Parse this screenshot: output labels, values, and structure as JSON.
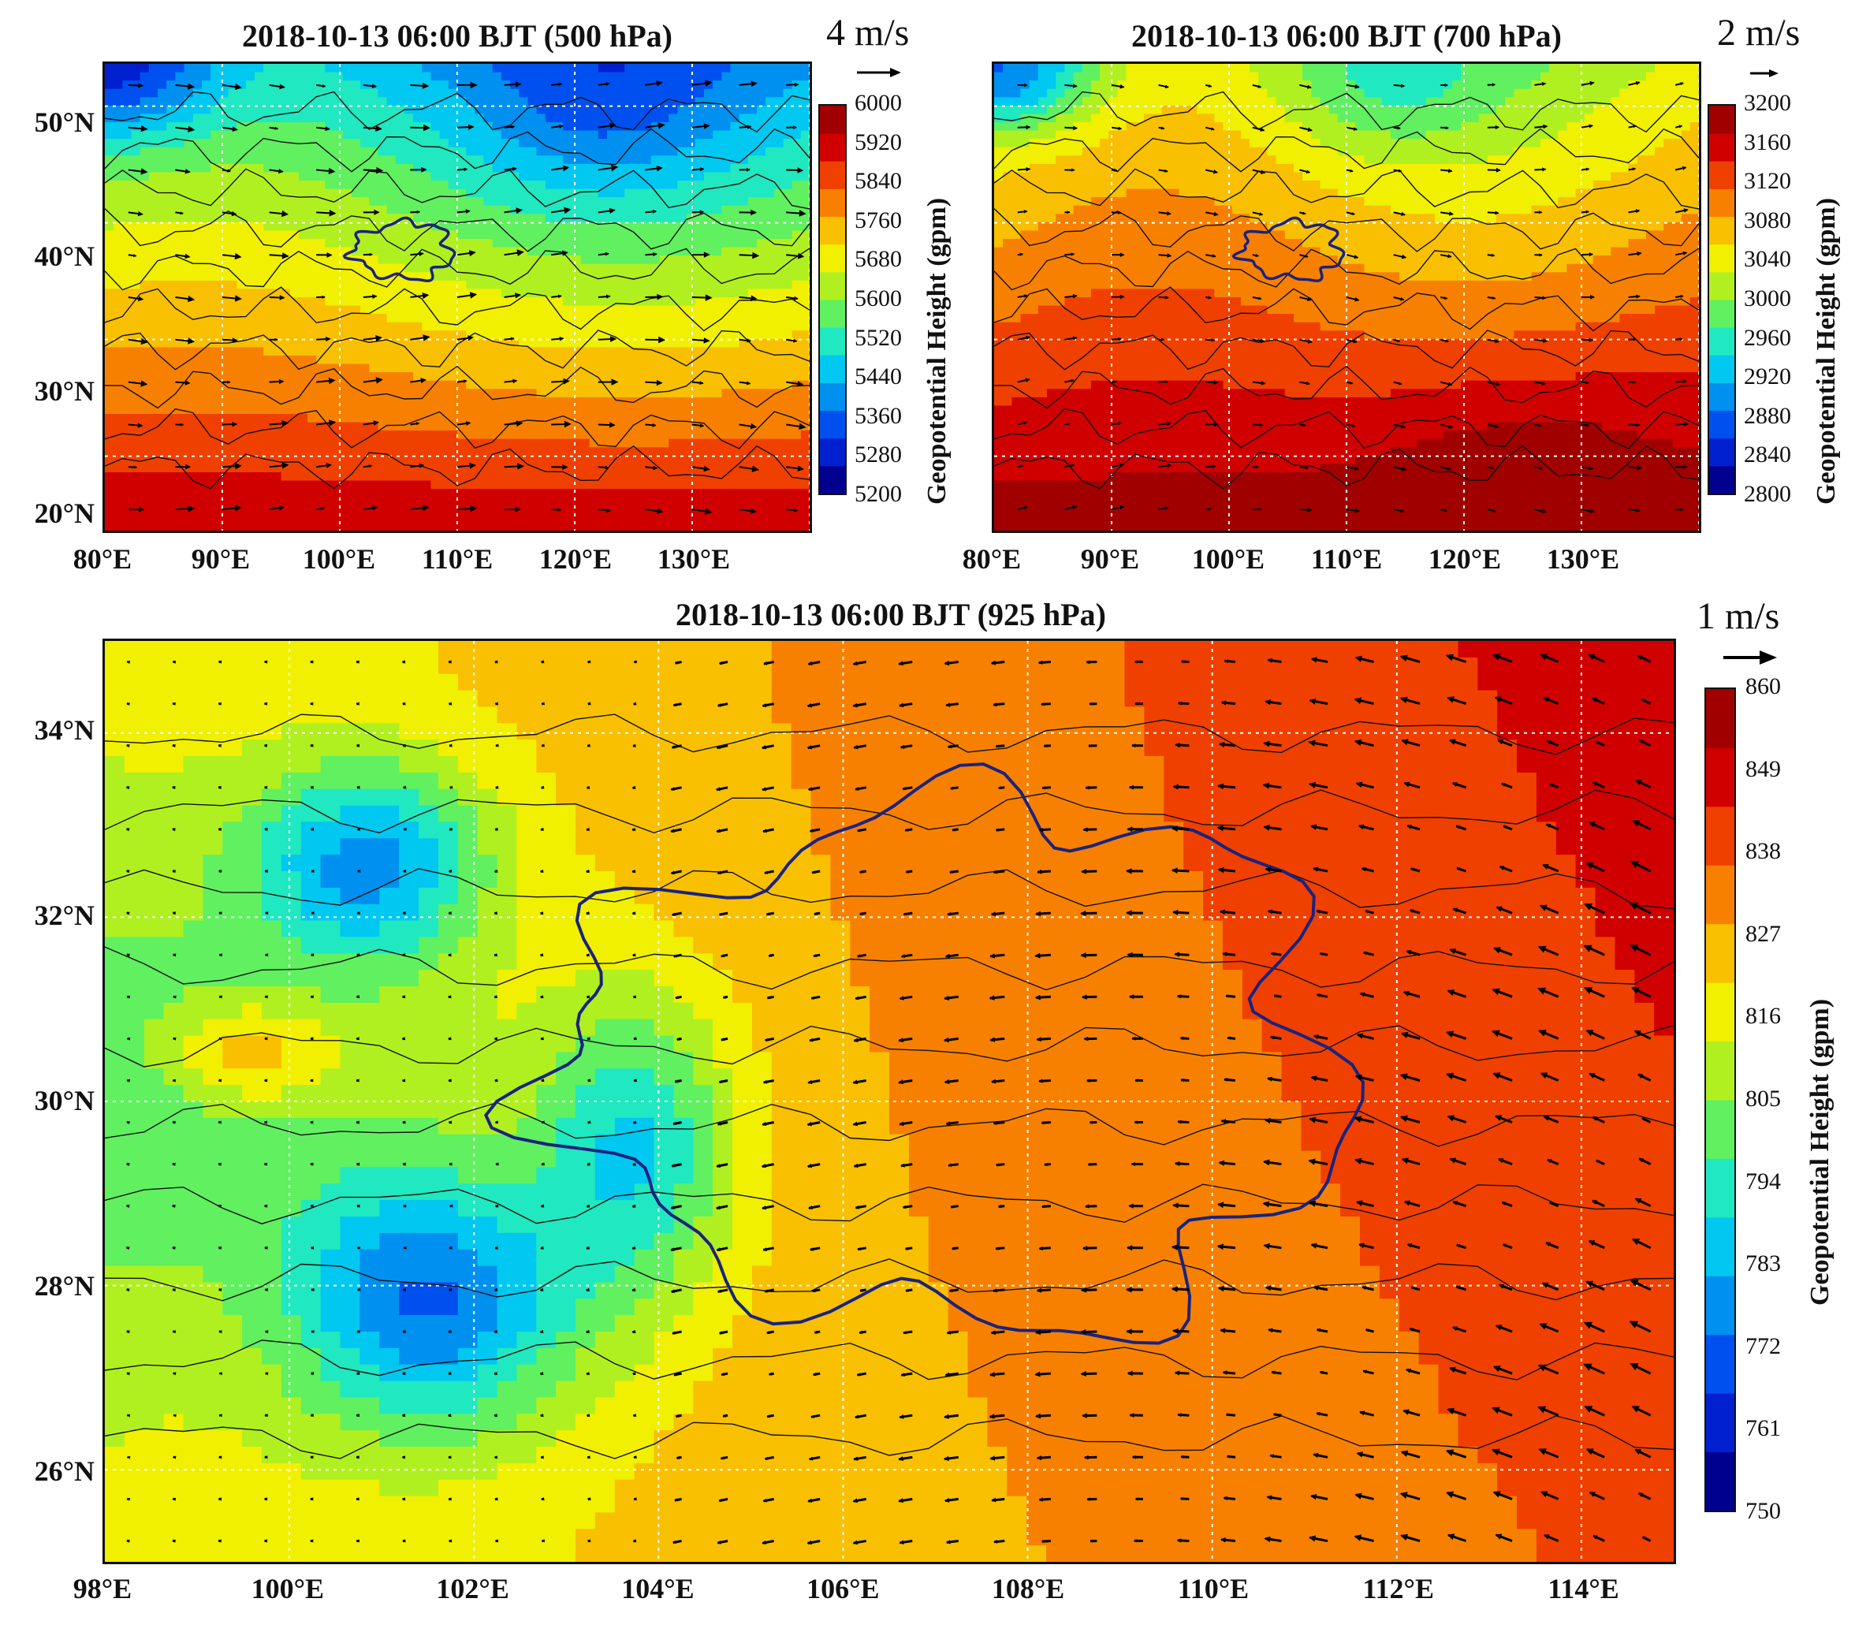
{
  "panels": [
    {
      "id": "p500",
      "title": "2018-10-13 06:00 BJT (500 hPa)",
      "ref_vector": "4 m/s",
      "x_ticks": [
        "80°E",
        "90°E",
        "100°E",
        "110°E",
        "120°E",
        "130°E"
      ],
      "y_ticks": [
        "50°N",
        "40°N",
        "30°N",
        "20°N"
      ],
      "colorbar": {
        "title": "Geopotential Height (gpm)",
        "labels": [
          "6000",
          "5920",
          "5840",
          "5760",
          "5680",
          "5600",
          "5520",
          "5440",
          "5360",
          "5280",
          "5200"
        ]
      }
    },
    {
      "id": "p700",
      "title": "2018-10-13 06:00 BJT (700 hPa)",
      "ref_vector": "2 m/s",
      "x_ticks": [
        "80°E",
        "90°E",
        "100°E",
        "110°E",
        "120°E",
        "130°E"
      ],
      "y_ticks": [],
      "colorbar": {
        "title": "Geopotential Height (gpm)",
        "labels": [
          "3200",
          "3160",
          "3120",
          "3080",
          "3040",
          "3000",
          "2960",
          "2920",
          "2880",
          "2840",
          "2800"
        ]
      }
    },
    {
      "id": "p925",
      "title": "2018-10-13 06:00 BJT (925 hPa)",
      "ref_vector": "1 m/s",
      "x_ticks": [
        "98°E",
        "100°E",
        "102°E",
        "104°E",
        "106°E",
        "108°E",
        "110°E",
        "112°E",
        "114°E"
      ],
      "y_ticks": [
        "34°N",
        "32°N",
        "30°N",
        "28°N",
        "26°N"
      ],
      "colorbar": {
        "title": "Geopotential Height (gpm)",
        "labels": [
          "860",
          "849",
          "838",
          "827",
          "816",
          "805",
          "794",
          "783",
          "772",
          "761",
          "750"
        ]
      }
    }
  ],
  "colors": {
    "palette": [
      "#00008f",
      "#0020d0",
      "#0050f0",
      "#0090f0",
      "#00c8f0",
      "#20e8c0",
      "#60f060",
      "#b0f020",
      "#f0f000",
      "#f8c000",
      "#f88000",
      "#f04000",
      "#d00000",
      "#a00000"
    ],
    "region_outline": "#1a237e",
    "grid": "#ffffff",
    "arrow": "#000000"
  }
}
